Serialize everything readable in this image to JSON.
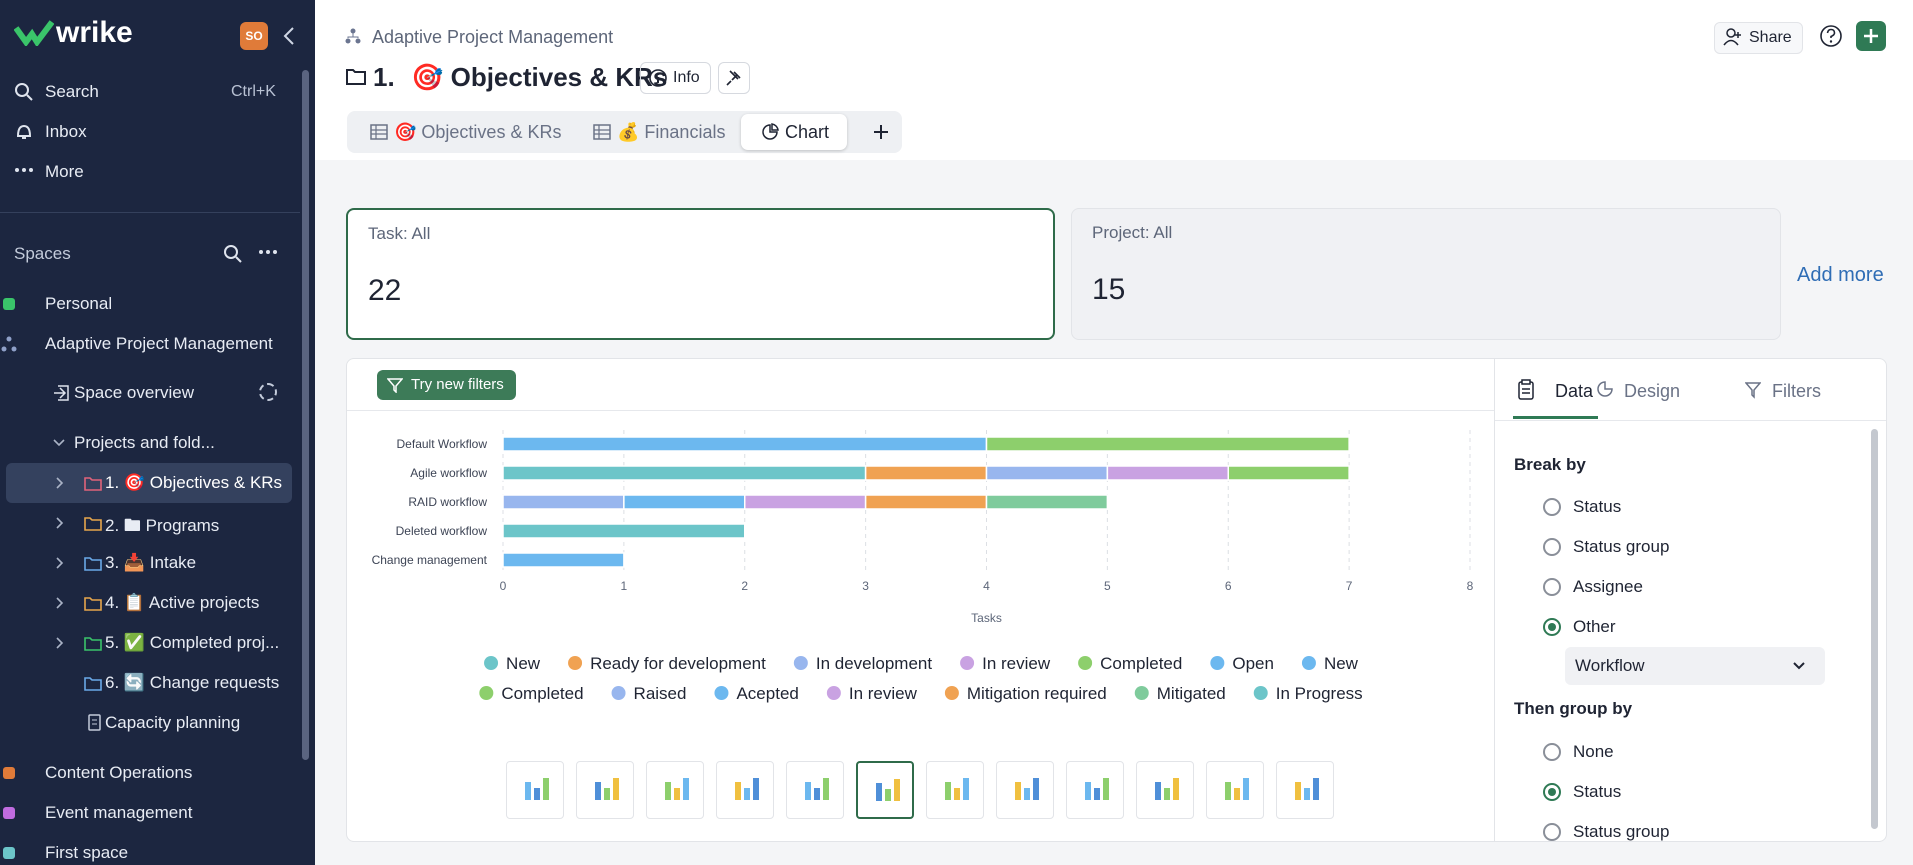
{
  "sidebar": {
    "logo": "wrike",
    "avatar": "SO",
    "nav": [
      {
        "label": "Search",
        "shortcut": "Ctrl+K"
      },
      {
        "label": "Inbox"
      },
      {
        "label": "More"
      }
    ],
    "spaces_title": "Spaces",
    "items": [
      "Personal",
      "Adaptive Project Management",
      "Space overview",
      "Projects and fold...",
      "1. 🎯 Objectives & KRs",
      "2. 🖿 Programs",
      "3. 📥 Intake",
      "4. 📋 Active projects",
      "5. ✅ Completed proj...",
      "6. 🔄 Change requests",
      "Capacity planning",
      "Content Operations",
      "Event management",
      "First space"
    ]
  },
  "header": {
    "breadcrumb": "Adaptive Project Management",
    "title_number": "1.",
    "title": "🎯 Objectives & KRs",
    "info": "Info",
    "share": "Share",
    "tabs": [
      "🎯 Objectives & KRs",
      "💰 Financials",
      "Chart"
    ]
  },
  "cards": [
    {
      "label": "Task: All",
      "value": 22
    },
    {
      "label": "Project: All",
      "value": 15
    }
  ],
  "add_more": "Add more",
  "filter_button": "Try new filters",
  "chart_data": {
    "type": "stacked-horizontal-bar",
    "categories": [
      "Default Workflow",
      "Agile workflow",
      "RAID workflow",
      "Deleted workflow",
      "Change management"
    ],
    "xlabel": "Tasks",
    "xlim": [
      0,
      8
    ],
    "xticks": [
      0,
      1,
      2,
      3,
      4,
      5,
      6,
      7,
      8
    ],
    "grid": true,
    "series": [
      {
        "name": "New",
        "color": "#6cc5c9",
        "values": [
          null,
          3,
          null,
          null,
          null
        ]
      },
      {
        "name": "Ready for development",
        "color": "#f0a252",
        "values": [
          null,
          1,
          null,
          null,
          null
        ]
      },
      {
        "name": "In development",
        "color": "#98b6ee",
        "values": [
          null,
          1,
          null,
          null,
          null
        ]
      },
      {
        "name": "In review",
        "color": "#c9a2e2",
        "values": [
          null,
          1,
          null,
          null,
          null
        ]
      },
      {
        "name": "Completed",
        "color": "#8dcf6c",
        "values": [
          null,
          1,
          null,
          null,
          null
        ]
      },
      {
        "name": "Open",
        "color": "#6cb8ef",
        "values": [
          null,
          null,
          null,
          null,
          1
        ]
      },
      {
        "name": "New",
        "color": "#6cb8ef",
        "values": [
          4,
          null,
          null,
          null,
          null
        ]
      },
      {
        "name": "Completed",
        "color": "#8dcf6c",
        "values": [
          3,
          null,
          null,
          null,
          null
        ]
      },
      {
        "name": "Raised",
        "color": "#98b6ee",
        "values": [
          null,
          null,
          1,
          null,
          null
        ]
      },
      {
        "name": "Acepted",
        "color": "#6cb8ef",
        "values": [
          null,
          null,
          1,
          null,
          null
        ]
      },
      {
        "name": "In review",
        "color": "#c9a2e2",
        "values": [
          null,
          null,
          1,
          null,
          null
        ]
      },
      {
        "name": "Mitigation required",
        "color": "#f0a252",
        "values": [
          null,
          null,
          1,
          null,
          null
        ]
      },
      {
        "name": "Mitigated",
        "color": "#7fcb9c",
        "values": [
          null,
          null,
          1,
          null,
          null
        ]
      },
      {
        "name": "In Progress",
        "color": "#6cc5c9",
        "values": [
          null,
          null,
          null,
          2,
          null
        ]
      }
    ]
  },
  "panel": {
    "tabs": [
      "Data",
      "Design",
      "Filters"
    ],
    "break_by": "Break by",
    "break_options": [
      "Status",
      "Status group",
      "Assignee",
      "Other"
    ],
    "dropdown": "Workflow",
    "then_group_by": "Then group by",
    "group_options": [
      "None",
      "Status",
      "Status group"
    ]
  }
}
